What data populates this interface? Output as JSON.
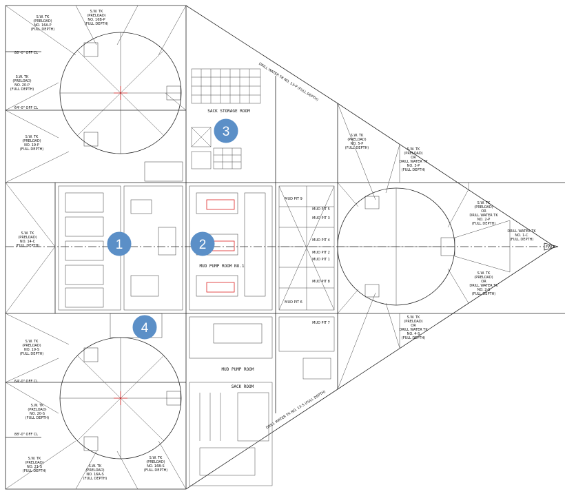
{
  "tanks": [
    {
      "id": "sw-16p",
      "lines": [
        "S.W. TK",
        "(PRELOAD)",
        "NO. 16A-P",
        "(FULL DEPTH)"
      ]
    },
    {
      "id": "sw-16p-b",
      "lines": [
        "S.W. TK",
        "(PRELOAD)",
        "NO. 16B-P",
        "(FULL DEPTH)"
      ]
    },
    {
      "id": "sw-20p",
      "lines": [
        "S.W. TK",
        "(PRELOAD)",
        "NO. 20-P",
        "(FULL DEPTH)"
      ]
    },
    {
      "id": "sw-19p",
      "lines": [
        "S.W. TK",
        "(PRELOAD)",
        "NO. 19-P",
        "(FULL DEPTH)"
      ]
    },
    {
      "id": "sw-14c",
      "lines": [
        "S.W. TK",
        "(PRELOAD)",
        "NO. 14-C",
        "(FULL DEPTH)"
      ]
    },
    {
      "id": "sw-19s",
      "lines": [
        "S.W. TK",
        "(PRELOAD)",
        "NO. 19-S",
        "(FULL DEPTH)"
      ]
    },
    {
      "id": "sw-20s",
      "lines": [
        "S.W. TK",
        "(PRELOAD)",
        "NO. 20-S",
        "(FULL DEPTH)"
      ]
    },
    {
      "id": "sw-21s",
      "lines": [
        "S.W. TK",
        "(PRELOAD)",
        "NO. 21-S",
        "(FULL DEPTH)"
      ]
    },
    {
      "id": "sw-16s",
      "lines": [
        "S.W. TK",
        "(PRELOAD)",
        "NO. 16A-S",
        "(FULL DEPTH)"
      ]
    },
    {
      "id": "sw-16s-b",
      "lines": [
        "S.W. TK",
        "(PRELOAD)",
        "NO. 16B-S",
        "(FULL DEPTH)"
      ]
    },
    {
      "id": "sw-5p",
      "lines": [
        "S.W. TK",
        "(PRELOAD)",
        "NO. 5-P",
        "(FULL DEPTH)"
      ]
    },
    {
      "id": "sw-3p",
      "lines": [
        "S.W. TK",
        "(PRELOAD)",
        "OR",
        "DRILL WATER TK",
        "NO. 3-P",
        "(FULL DEPTH)"
      ]
    },
    {
      "id": "sw-2p",
      "lines": [
        "S.W. TK",
        "(PRELOAD)",
        "OR",
        "DRILL WATER TK",
        "NO. 2-P",
        "(FULL DEPTH)"
      ]
    },
    {
      "id": "dw-1c",
      "lines": [
        "DRILL WATER TK",
        "NO. 1-C",
        "(FULL DEPTH)"
      ]
    },
    {
      "id": "sw-2s",
      "lines": [
        "S.W. TK",
        "(PRELOAD)",
        "OR",
        "DRILL WATER TK",
        "NO. 2-S",
        "(FULL DEPTH)"
      ]
    },
    {
      "id": "sw-4s",
      "lines": [
        "S.W. TK",
        "(PRELOAD)",
        "OR",
        "DRILL WATER TK",
        "NO. 4-S",
        "(FULL DEPTH)"
      ]
    }
  ],
  "offsets": {
    "p88": "88'-0\" OFF CL",
    "p64": "64'-0\" OFF CL",
    "s64": "64'-0\" OFF CL",
    "s88": "88'-0\" OFF CL"
  },
  "rooms": {
    "sack_storage": "SACK STORAGE ROOM",
    "mud_pump": "MUD PUMP ROOM",
    "mud_pump_no1": "MUD PUMP ROOM NO.1",
    "mud_pits": [
      "MUD PIT 1",
      "MUD PIT 2",
      "MUD PIT 3",
      "MUD PIT 4",
      "MUD PIT 5",
      "MUD PIT 6",
      "MUD PIT 7",
      "MUD PIT 8",
      "MUD PIT 9"
    ],
    "drill_water_top": [
      "DRILL WATER TK",
      "NO. 13-P",
      "(FULL DEPTH)"
    ],
    "drill_water_bottom": [
      "DRILL WATER TK",
      "NO. 13-S",
      "(FULL DEPTH)"
    ],
    "sack_room": "SACK ROOM",
    "fwd": "FWD"
  },
  "markers": [
    "1",
    "2",
    "3",
    "4"
  ]
}
